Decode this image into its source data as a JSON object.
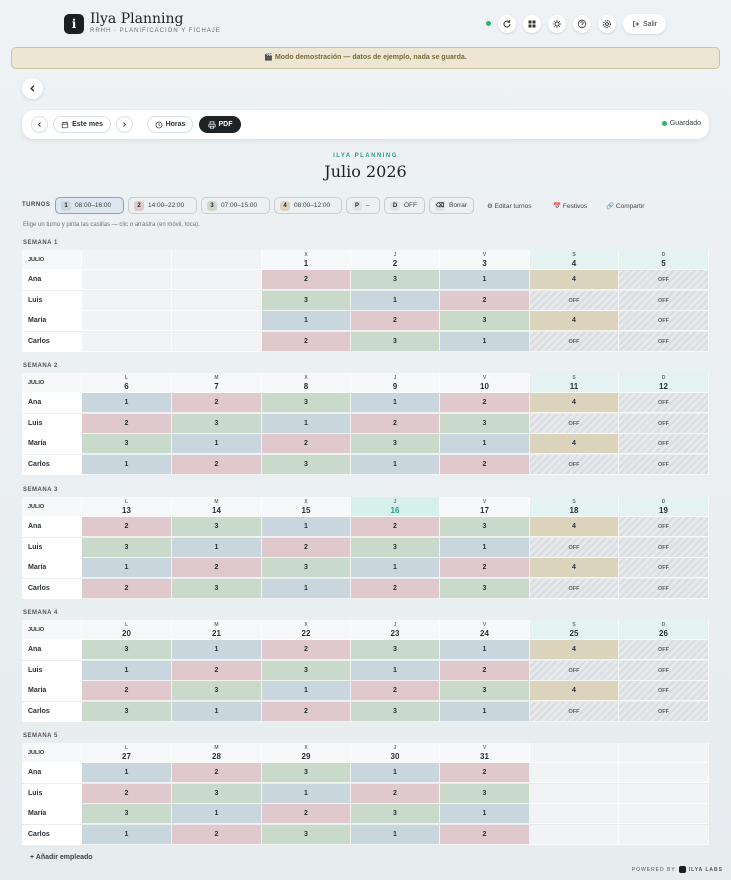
{
  "app": {
    "logo_letter": "i",
    "title": "Ilya Planning",
    "subtitle": "RRHH · PLANIFICACIÓN Y FICHAJE",
    "exit_label": "Salir",
    "header_icons": [
      "refresh-icon",
      "grid-icon",
      "sun-icon",
      "help-icon",
      "gear-icon"
    ]
  },
  "banner": {
    "text": "🎬 Modo demostración — datos de ejemplo, nada se guarda."
  },
  "toolbar": {
    "this_month": "Este mes",
    "hours": "Horas",
    "pdf": "PDF",
    "status": "Guardado"
  },
  "calendar": {
    "kicker": "ILYA PLANNING",
    "month_title": "Julio 2026"
  },
  "shifts": {
    "label": "TURNOS",
    "items": [
      {
        "code": "1",
        "label": "08:00–16:00",
        "color": "#c9d6dd"
      },
      {
        "code": "2",
        "label": "14:00–22:00",
        "color": "#dfc9cd"
      },
      {
        "code": "3",
        "label": "07:00–15:00",
        "color": "#c9dacb"
      },
      {
        "code": "4",
        "label": "08:00–12:00",
        "color": "#dcd3bd"
      },
      {
        "code": "P",
        "label": "–",
        "color": "#dfe3e5"
      },
      {
        "code": "D",
        "label": "OFF",
        "color": "#dfe3e5"
      },
      {
        "code": "⌫",
        "label": "Borrar",
        "color": "#dfe3e5"
      }
    ],
    "edit_label": "⚙ Editar turnos",
    "holidays_label": "📅 Festivos",
    "share_label": "🔗 Compartir"
  },
  "hint": "Elige un turno y pinta las casillas — clic o arrastra (en móvil, toca).",
  "month_label": "JULIO",
  "weekday_letters": [
    "L",
    "M",
    "X",
    "J",
    "V",
    "S",
    "D"
  ],
  "off_label": "OFF",
  "weeks": [
    {
      "label": "SEMANA 1",
      "days": [
        "",
        "",
        "1",
        "2",
        "3",
        "4",
        "5"
      ],
      "rows": [
        {
          "name": "Ana",
          "cells": [
            "",
            "",
            "2",
            "3",
            "1",
            "4",
            "OFF"
          ]
        },
        {
          "name": "Luis",
          "cells": [
            "",
            "",
            "3",
            "1",
            "2",
            "OFF",
            "OFF"
          ]
        },
        {
          "name": "María",
          "cells": [
            "",
            "",
            "1",
            "2",
            "3",
            "4",
            "OFF"
          ]
        },
        {
          "name": "Carlos",
          "cells": [
            "",
            "",
            "2",
            "3",
            "1",
            "OFF",
            "OFF"
          ]
        }
      ]
    },
    {
      "label": "SEMANA 2",
      "days": [
        "6",
        "7",
        "8",
        "9",
        "10",
        "11",
        "12"
      ],
      "rows": [
        {
          "name": "Ana",
          "cells": [
            "1",
            "2",
            "3",
            "1",
            "2",
            "4",
            "OFF"
          ]
        },
        {
          "name": "Luis",
          "cells": [
            "2",
            "3",
            "1",
            "2",
            "3",
            "OFF",
            "OFF"
          ]
        },
        {
          "name": "María",
          "cells": [
            "3",
            "1",
            "2",
            "3",
            "1",
            "4",
            "OFF"
          ]
        },
        {
          "name": "Carlos",
          "cells": [
            "1",
            "2",
            "3",
            "1",
            "2",
            "OFF",
            "OFF"
          ]
        }
      ]
    },
    {
      "label": "SEMANA 3",
      "days": [
        "13",
        "14",
        "15",
        "16",
        "17",
        "18",
        "19"
      ],
      "today_index": 3,
      "rows": [
        {
          "name": "Ana",
          "cells": [
            "2",
            "3",
            "1",
            "2",
            "3",
            "4",
            "OFF"
          ]
        },
        {
          "name": "Luis",
          "cells": [
            "3",
            "1",
            "2",
            "3",
            "1",
            "OFF",
            "OFF"
          ]
        },
        {
          "name": "María",
          "cells": [
            "1",
            "2",
            "3",
            "1",
            "2",
            "4",
            "OFF"
          ]
        },
        {
          "name": "Carlos",
          "cells": [
            "2",
            "3",
            "1",
            "2",
            "3",
            "OFF",
            "OFF"
          ]
        }
      ]
    },
    {
      "label": "SEMANA 4",
      "days": [
        "20",
        "21",
        "22",
        "23",
        "24",
        "25",
        "26"
      ],
      "rows": [
        {
          "name": "Ana",
          "cells": [
            "3",
            "1",
            "2",
            "3",
            "1",
            "4",
            "OFF"
          ]
        },
        {
          "name": "Luis",
          "cells": [
            "1",
            "2",
            "3",
            "1",
            "2",
            "OFF",
            "OFF"
          ]
        },
        {
          "name": "María",
          "cells": [
            "2",
            "3",
            "1",
            "2",
            "3",
            "4",
            "OFF"
          ]
        },
        {
          "name": "Carlos",
          "cells": [
            "3",
            "1",
            "2",
            "3",
            "1",
            "OFF",
            "OFF"
          ]
        }
      ]
    },
    {
      "label": "SEMANA 5",
      "days": [
        "27",
        "28",
        "29",
        "30",
        "31",
        "",
        ""
      ],
      "rows": [
        {
          "name": "Ana",
          "cells": [
            "1",
            "2",
            "3",
            "1",
            "2",
            "",
            ""
          ]
        },
        {
          "name": "Luis",
          "cells": [
            "2",
            "3",
            "1",
            "2",
            "3",
            "",
            ""
          ]
        },
        {
          "name": "María",
          "cells": [
            "3",
            "1",
            "2",
            "3",
            "1",
            "",
            ""
          ]
        },
        {
          "name": "Carlos",
          "cells": [
            "1",
            "2",
            "3",
            "1",
            "2",
            "",
            ""
          ]
        }
      ]
    }
  ],
  "add_employee": "+ Añadir empleado",
  "powered_by": "POWERED BY",
  "powered_brand": "ILYA LABS"
}
